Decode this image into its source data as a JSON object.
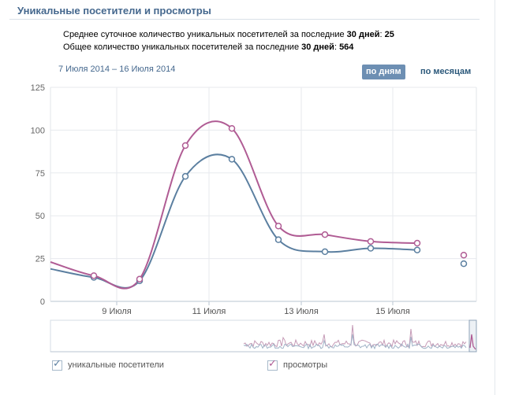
{
  "header": {
    "title": "Уникальные посетители и просмотры"
  },
  "stats": {
    "line1_prefix": "Среднее суточное количество уникальных посетителей за последние",
    "line1_days": "30 дней",
    "line1_value": "25",
    "line2_prefix": "Общее количество уникальных посетителей за последние",
    "line2_days": "30 дней",
    "line2_value": "564"
  },
  "date_range": "7 Июля 2014 – 16 Июля 2014",
  "period_buttons": {
    "days": "по дням",
    "months": "по месяцам"
  },
  "legend": {
    "visitors": {
      "label": "уникальные посетители",
      "checkmark": "✓"
    },
    "views": {
      "label": "просмотры",
      "checkmark": "✓"
    }
  },
  "colors": {
    "visitors": "#5b7fa0",
    "views": "#b05c94",
    "accent": "#45688e",
    "button": "#6d8fb3"
  },
  "chart_data": {
    "type": "line",
    "x_ticks": [
      "9 Июля",
      "11 Июля",
      "13 Июля",
      "15 Июля"
    ],
    "y_ticks": [
      0,
      25,
      50,
      75,
      100,
      125
    ],
    "ylim": [
      0,
      125
    ],
    "grid": true,
    "series": [
      {
        "name": "уникальные посетители",
        "values": [
          14,
          12,
          73,
          83,
          36,
          29,
          31,
          30,
          22
        ]
      },
      {
        "name": "просмотры",
        "values": [
          15,
          13,
          91,
          101,
          44,
          39,
          35,
          34,
          27
        ]
      }
    ]
  }
}
